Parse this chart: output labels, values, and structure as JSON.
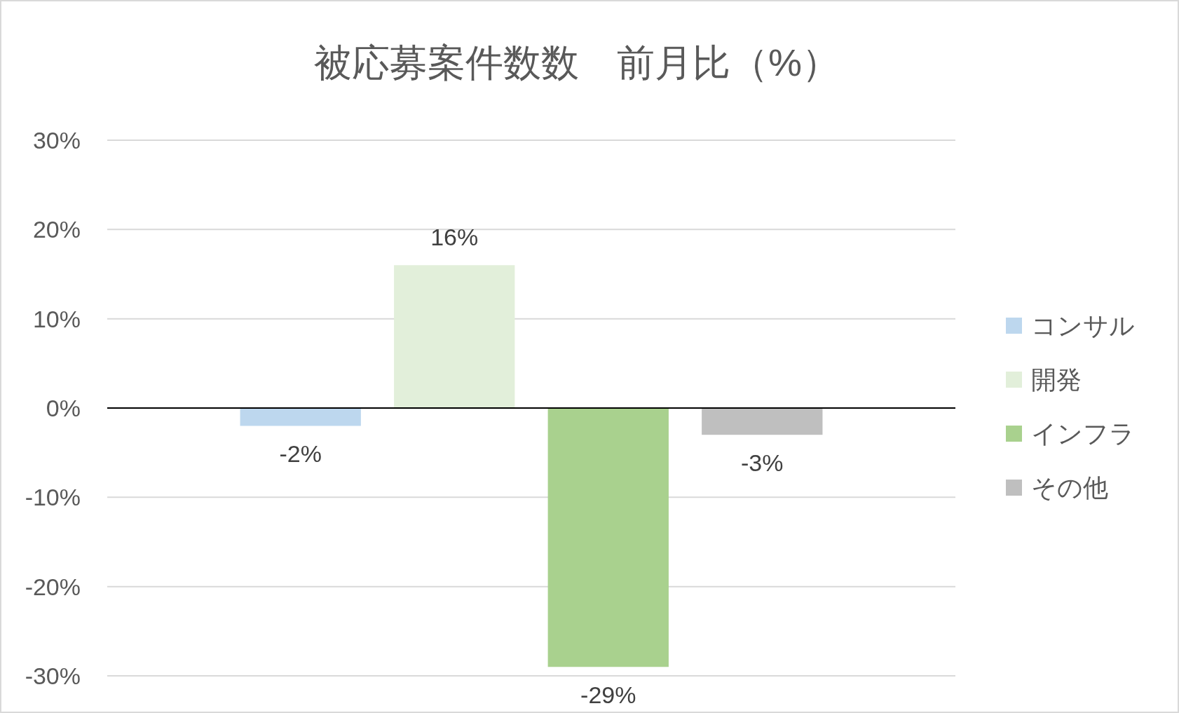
{
  "chart_data": {
    "type": "bar",
    "title": "被応募案件数数　前月比（%）",
    "categories": [
      null
    ],
    "series": [
      {
        "name": "コンサル",
        "color": "#bdd7ee",
        "values": [
          -2
        ],
        "value_labels": [
          "-2%"
        ]
      },
      {
        "name": "開発",
        "color": "#e2efda",
        "values": [
          16
        ],
        "value_labels": [
          "16%"
        ]
      },
      {
        "name": "インフラ",
        "color": "#a9d18e",
        "values": [
          -29
        ],
        "value_labels": [
          "-29%"
        ]
      },
      {
        "name": "その他",
        "color": "#bfbfbf",
        "values": [
          -3
        ],
        "value_labels": [
          "-3%"
        ]
      }
    ],
    "ylim": [
      -30,
      30
    ],
    "yticks": [
      {
        "value": -30,
        "label": "-30%"
      },
      {
        "value": -20,
        "label": "-20%"
      },
      {
        "value": -10,
        "label": "-10%"
      },
      {
        "value": 0,
        "label": "0%"
      },
      {
        "value": 10,
        "label": "10%"
      },
      {
        "value": 20,
        "label": "20%"
      },
      {
        "value": 30,
        "label": "30%"
      }
    ],
    "grid": "y",
    "legend": "right"
  }
}
